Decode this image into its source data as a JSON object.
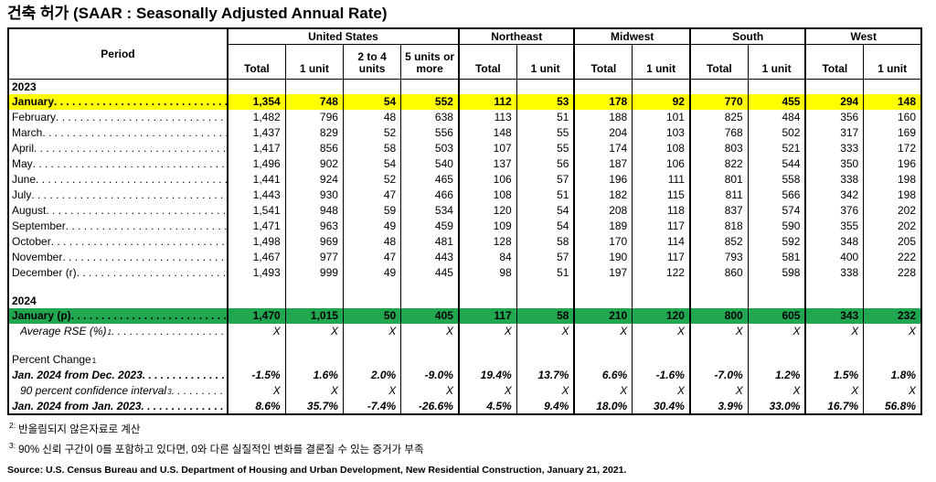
{
  "title": "건축 허가 (SAAR : Seasonally Adjusted Annual Rate)",
  "table": {
    "period_header": "Period",
    "groups": [
      {
        "label": "United States"
      },
      {
        "label": "Northeast"
      },
      {
        "label": "Midwest"
      },
      {
        "label": "South"
      },
      {
        "label": "West"
      }
    ],
    "subcols": [
      "Total",
      "1 unit",
      "2 to 4 units",
      "5 units or more",
      "Total",
      "1 unit",
      "Total",
      "1 unit",
      "Total",
      "1 unit",
      "Total",
      "1 unit"
    ],
    "rows": [
      {
        "type": "section",
        "label": "2023"
      },
      {
        "type": "data",
        "label": "January",
        "highlight": "yellow",
        "values": [
          "1,354",
          "748",
          "54",
          "552",
          "112",
          "53",
          "178",
          "92",
          "770",
          "455",
          "294",
          "148"
        ]
      },
      {
        "type": "data",
        "label": "February",
        "values": [
          "1,482",
          "796",
          "48",
          "638",
          "113",
          "51",
          "188",
          "101",
          "825",
          "484",
          "356",
          "160"
        ]
      },
      {
        "type": "data",
        "label": "March",
        "values": [
          "1,437",
          "829",
          "52",
          "556",
          "148",
          "55",
          "204",
          "103",
          "768",
          "502",
          "317",
          "169"
        ]
      },
      {
        "type": "data",
        "label": "April",
        "values": [
          "1,417",
          "856",
          "58",
          "503",
          "107",
          "55",
          "174",
          "108",
          "803",
          "521",
          "333",
          "172"
        ]
      },
      {
        "type": "data",
        "label": "May",
        "values": [
          "1,496",
          "902",
          "54",
          "540",
          "137",
          "56",
          "187",
          "106",
          "822",
          "544",
          "350",
          "196"
        ]
      },
      {
        "type": "data",
        "label": "June",
        "values": [
          "1,441",
          "924",
          "52",
          "465",
          "106",
          "57",
          "196",
          "111",
          "801",
          "558",
          "338",
          "198"
        ]
      },
      {
        "type": "data",
        "label": "July",
        "values": [
          "1,443",
          "930",
          "47",
          "466",
          "108",
          "51",
          "182",
          "115",
          "811",
          "566",
          "342",
          "198"
        ]
      },
      {
        "type": "data",
        "label": "August",
        "values": [
          "1,541",
          "948",
          "59",
          "534",
          "120",
          "54",
          "208",
          "118",
          "837",
          "574",
          "376",
          "202"
        ]
      },
      {
        "type": "data",
        "label": "September",
        "values": [
          "1,471",
          "963",
          "49",
          "459",
          "109",
          "54",
          "189",
          "117",
          "818",
          "590",
          "355",
          "202"
        ]
      },
      {
        "type": "data",
        "label": "October",
        "values": [
          "1,498",
          "969",
          "48",
          "481",
          "128",
          "58",
          "170",
          "114",
          "852",
          "592",
          "348",
          "205"
        ]
      },
      {
        "type": "data",
        "label": "November",
        "values": [
          "1,467",
          "977",
          "47",
          "443",
          "84",
          "57",
          "190",
          "117",
          "793",
          "581",
          "400",
          "222"
        ]
      },
      {
        "type": "data",
        "label": "December (r)",
        "values": [
          "1,493",
          "999",
          "49",
          "445",
          "98",
          "51",
          "197",
          "122",
          "860",
          "598",
          "338",
          "228"
        ]
      },
      {
        "type": "spacer"
      },
      {
        "type": "section",
        "label": "2024"
      },
      {
        "type": "data",
        "label": "January (p)",
        "highlight": "green",
        "values": [
          "1,470",
          "1,015",
          "50",
          "405",
          "117",
          "58",
          "210",
          "120",
          "800",
          "605",
          "343",
          "232"
        ]
      },
      {
        "type": "data",
        "label": "Average RSE (%)",
        "sup": "1",
        "style": "italic",
        "values": [
          "X",
          "X",
          "X",
          "X",
          "X",
          "X",
          "X",
          "X",
          "X",
          "X",
          "X",
          "X"
        ]
      },
      {
        "type": "spacer"
      },
      {
        "type": "label",
        "label": "Percent Change",
        "sup": "1"
      },
      {
        "type": "data",
        "label": "Jan. 2024 from Dec. 2023",
        "style": "bolditalic",
        "values": [
          "-1.5%",
          "1.6%",
          "2.0%",
          "-9.0%",
          "19.4%",
          "13.7%",
          "6.6%",
          "-1.6%",
          "-7.0%",
          "1.2%",
          "1.5%",
          "1.8%"
        ]
      },
      {
        "type": "data",
        "label": "90 percent confidence interval",
        "sup": "3",
        "style": "italic",
        "values": [
          "X",
          "X",
          "X",
          "X",
          "X",
          "X",
          "X",
          "X",
          "X",
          "X",
          "X",
          "X"
        ]
      },
      {
        "type": "data",
        "label": "Jan. 2024 from Jan. 2023",
        "style": "bolditalic",
        "values": [
          "8.6%",
          "35.7%",
          "-7.4%",
          "-26.6%",
          "4.5%",
          "9.4%",
          "18.0%",
          "30.4%",
          "3.9%",
          "33.0%",
          "16.7%",
          "56.8%"
        ]
      }
    ]
  },
  "colors": {
    "highlight_yellow": "#ffff00",
    "highlight_green": "#21a74f"
  },
  "footnotes": [
    {
      "marker": "2:",
      "text": "반올림되지 않은자료로 계산"
    },
    {
      "marker": "3:",
      "text": "90% 신뢰 구간이 0를 포함하고 있다면, 0와 다른 실질적인 변화를 결론질 수 있는 증거가 부족"
    }
  ],
  "source": "Source: U.S. Census Bureau and U.S. Department of Housing and Urban Development, New Residential Construction, January 21, 2021."
}
